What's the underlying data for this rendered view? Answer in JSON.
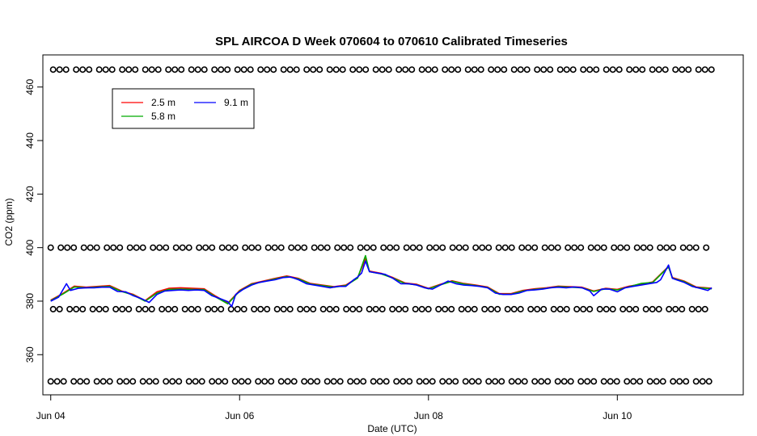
{
  "chart_data": {
    "type": "line",
    "title": "SPL AIRCOA D  Week 070604 to 070610  Calibrated Timeseries",
    "xlabel": "Date (UTC)",
    "ylabel": "CO2 (ppm)",
    "x_axis_kind": "date",
    "xlim": [
      "2007-06-03T22:00",
      "2007-06-11T08:00"
    ],
    "ylim": [
      345,
      472
    ],
    "x_ticks": [
      {
        "date": "2007-06-04T00:00",
        "label": "Jun 04"
      },
      {
        "date": "2007-06-06T00:00",
        "label": "Jun 06"
      },
      {
        "date": "2007-06-08T00:00",
        "label": "Jun 08"
      },
      {
        "date": "2007-06-10T00:00",
        "label": "Jun 10"
      }
    ],
    "y_ticks": [
      360,
      380,
      400,
      420,
      440,
      460
    ],
    "grid": false,
    "legend": {
      "placement": "top-left",
      "entries": [
        {
          "label": "2.5 m",
          "color": "#ff0000"
        },
        {
          "label": "5.8 m",
          "color": "#00aa00"
        },
        {
          "label": "9.1 m",
          "color": "#0000ff"
        }
      ]
    },
    "series": [
      {
        "name": "2.5 m",
        "color": "#ff0000",
        "points": [
          [
            "2007-06-04T00:00",
            380.4
          ],
          [
            "2007-06-04T03:00",
            382.8
          ],
          [
            "2007-06-04T06:00",
            385.6
          ],
          [
            "2007-06-04T09:00",
            385.2
          ],
          [
            "2007-06-04T12:00",
            385.5
          ],
          [
            "2007-06-04T15:00",
            385.8
          ],
          [
            "2007-06-04T18:00",
            383.8
          ],
          [
            "2007-06-04T21:00",
            382.5
          ],
          [
            "2007-06-05T00:00",
            380.2
          ],
          [
            "2007-06-05T03:00",
            383.5
          ],
          [
            "2007-06-05T06:00",
            384.8
          ],
          [
            "2007-06-05T09:00",
            385.0
          ],
          [
            "2007-06-05T12:00",
            384.8
          ],
          [
            "2007-06-05T15:00",
            384.6
          ],
          [
            "2007-06-05T18:00",
            381.8
          ],
          [
            "2007-06-05T21:00",
            379.2
          ],
          [
            "2007-06-06T00:00",
            384.0
          ],
          [
            "2007-06-06T03:00",
            386.5
          ],
          [
            "2007-06-06T06:00",
            387.5
          ],
          [
            "2007-06-06T09:00",
            388.5
          ],
          [
            "2007-06-06T12:00",
            389.4
          ],
          [
            "2007-06-06T15:00",
            388.5
          ],
          [
            "2007-06-06T18:00",
            386.6
          ],
          [
            "2007-06-06T21:00",
            386.0
          ],
          [
            "2007-06-07T00:00",
            385.4
          ],
          [
            "2007-06-07T03:00",
            386.0
          ],
          [
            "2007-06-07T06:00",
            388.8
          ],
          [
            "2007-06-07T08:00",
            395.8
          ],
          [
            "2007-06-07T09:00",
            391.2
          ],
          [
            "2007-06-07T12:00",
            390.4
          ],
          [
            "2007-06-07T15:00",
            388.8
          ],
          [
            "2007-06-07T18:00",
            386.8
          ],
          [
            "2007-06-07T21:00",
            386.3
          ],
          [
            "2007-06-08T00:00",
            384.8
          ],
          [
            "2007-06-08T03:00",
            386.3
          ],
          [
            "2007-06-08T06:00",
            387.6
          ],
          [
            "2007-06-08T09:00",
            386.6
          ],
          [
            "2007-06-08T12:00",
            386.0
          ],
          [
            "2007-06-08T15:00",
            385.3
          ],
          [
            "2007-06-08T18:00",
            382.8
          ],
          [
            "2007-06-08T21:00",
            382.8
          ],
          [
            "2007-06-09T00:00",
            384.0
          ],
          [
            "2007-06-09T03:00",
            384.6
          ],
          [
            "2007-06-09T06:00",
            385.0
          ],
          [
            "2007-06-09T09:00",
            385.6
          ],
          [
            "2007-06-09T12:00",
            385.4
          ],
          [
            "2007-06-09T15:00",
            385.2
          ],
          [
            "2007-06-09T18:00",
            383.8
          ],
          [
            "2007-06-09T21:00",
            384.8
          ],
          [
            "2007-06-10T00:00",
            384.4
          ],
          [
            "2007-06-10T03:00",
            385.6
          ],
          [
            "2007-06-10T06:00",
            386.3
          ],
          [
            "2007-06-10T09:00",
            387.2
          ],
          [
            "2007-06-10T13:00",
            393.0
          ],
          [
            "2007-06-10T14:00",
            388.8
          ],
          [
            "2007-06-10T17:00",
            387.5
          ],
          [
            "2007-06-10T20:00",
            385.3
          ],
          [
            "2007-06-11T00:00",
            384.8
          ]
        ]
      },
      {
        "name": "5.8 m",
        "color": "#00aa00",
        "points": [
          [
            "2007-06-04T00:00",
            380.2
          ],
          [
            "2007-06-04T03:00",
            382.6
          ],
          [
            "2007-06-04T06:00",
            385.3
          ],
          [
            "2007-06-04T09:00",
            385.0
          ],
          [
            "2007-06-04T12:00",
            385.3
          ],
          [
            "2007-06-04T15:00",
            385.5
          ],
          [
            "2007-06-04T18:00",
            383.6
          ],
          [
            "2007-06-04T21:00",
            382.3
          ],
          [
            "2007-06-05T00:00",
            380.0
          ],
          [
            "2007-06-05T03:00",
            383.0
          ],
          [
            "2007-06-05T06:00",
            384.4
          ],
          [
            "2007-06-05T09:00",
            384.5
          ],
          [
            "2007-06-05T12:00",
            384.4
          ],
          [
            "2007-06-05T15:00",
            384.3
          ],
          [
            "2007-06-05T18:00",
            381.5
          ],
          [
            "2007-06-05T21:00",
            379.0
          ],
          [
            "2007-06-06T00:00",
            383.8
          ],
          [
            "2007-06-06T03:00",
            386.3
          ],
          [
            "2007-06-06T06:00",
            387.3
          ],
          [
            "2007-06-06T09:00",
            388.3
          ],
          [
            "2007-06-06T12:00",
            389.2
          ],
          [
            "2007-06-06T15:00",
            388.3
          ],
          [
            "2007-06-06T18:00",
            386.4
          ],
          [
            "2007-06-06T21:00",
            385.8
          ],
          [
            "2007-06-07T00:00",
            385.2
          ],
          [
            "2007-06-07T03:00",
            385.8
          ],
          [
            "2007-06-07T06:00",
            388.6
          ],
          [
            "2007-06-07T08:00",
            397.0
          ],
          [
            "2007-06-07T09:00",
            391.0
          ],
          [
            "2007-06-07T12:00",
            390.2
          ],
          [
            "2007-06-07T15:00",
            388.6
          ],
          [
            "2007-06-07T18:00",
            386.6
          ],
          [
            "2007-06-07T21:00",
            386.1
          ],
          [
            "2007-06-08T00:00",
            384.6
          ],
          [
            "2007-06-08T03:00",
            386.1
          ],
          [
            "2007-06-08T06:00",
            387.4
          ],
          [
            "2007-06-08T09:00",
            386.4
          ],
          [
            "2007-06-08T12:00",
            385.8
          ],
          [
            "2007-06-08T15:00",
            385.1
          ],
          [
            "2007-06-08T18:00",
            382.6
          ],
          [
            "2007-06-08T21:00",
            382.6
          ],
          [
            "2007-06-09T00:00",
            383.8
          ],
          [
            "2007-06-09T03:00",
            384.4
          ],
          [
            "2007-06-09T06:00",
            384.8
          ],
          [
            "2007-06-09T09:00",
            385.4
          ],
          [
            "2007-06-09T12:00",
            385.2
          ],
          [
            "2007-06-09T15:00",
            385.0
          ],
          [
            "2007-06-09T18:00",
            383.6
          ],
          [
            "2007-06-09T21:00",
            384.6
          ],
          [
            "2007-06-10T00:00",
            384.2
          ],
          [
            "2007-06-10T03:00",
            385.4
          ],
          [
            "2007-06-10T06:00",
            386.6
          ],
          [
            "2007-06-10T09:00",
            387.0
          ],
          [
            "2007-06-10T13:00",
            392.8
          ],
          [
            "2007-06-10T14:00",
            388.6
          ],
          [
            "2007-06-10T17:00",
            387.3
          ],
          [
            "2007-06-10T20:00",
            385.1
          ],
          [
            "2007-06-11T00:00",
            384.6
          ]
        ]
      },
      {
        "name": "9.1 m",
        "color": "#0000ff",
        "points": [
          [
            "2007-06-04T00:00",
            380.0
          ],
          [
            "2007-06-04T02:00",
            381.5
          ],
          [
            "2007-06-04T04:00",
            386.5
          ],
          [
            "2007-06-04T05:00",
            384.0
          ],
          [
            "2007-06-04T07:00",
            384.8
          ],
          [
            "2007-06-04T09:00",
            385.0
          ],
          [
            "2007-06-04T11:00",
            385.0
          ],
          [
            "2007-06-04T13:00",
            385.2
          ],
          [
            "2007-06-04T15:00",
            385.2
          ],
          [
            "2007-06-04T17:00",
            383.6
          ],
          [
            "2007-06-04T19:00",
            383.5
          ],
          [
            "2007-06-04T21:00",
            382.0
          ],
          [
            "2007-06-04T23:00",
            381.0
          ],
          [
            "2007-06-05T01:00",
            379.5
          ],
          [
            "2007-06-05T03:00",
            382.5
          ],
          [
            "2007-06-05T05:00",
            383.8
          ],
          [
            "2007-06-05T07:00",
            384.0
          ],
          [
            "2007-06-05T09:00",
            384.2
          ],
          [
            "2007-06-05T11:00",
            384.0
          ],
          [
            "2007-06-05T13:00",
            384.2
          ],
          [
            "2007-06-05T15:00",
            384.0
          ],
          [
            "2007-06-05T17:00",
            382.0
          ],
          [
            "2007-06-05T19:00",
            381.0
          ],
          [
            "2007-06-05T21:00",
            379.8
          ],
          [
            "2007-06-05T22:00",
            378.0
          ],
          [
            "2007-06-05T23:00",
            382.5
          ],
          [
            "2007-06-06T01:00",
            384.5
          ],
          [
            "2007-06-06T03:00",
            386.0
          ],
          [
            "2007-06-06T05:00",
            387.0
          ],
          [
            "2007-06-06T07:00",
            387.5
          ],
          [
            "2007-06-06T09:00",
            388.0
          ],
          [
            "2007-06-06T11:00",
            388.8
          ],
          [
            "2007-06-06T13:00",
            389.0
          ],
          [
            "2007-06-06T15:00",
            388.0
          ],
          [
            "2007-06-06T17:00",
            386.5
          ],
          [
            "2007-06-06T19:00",
            386.0
          ],
          [
            "2007-06-06T21:00",
            385.5
          ],
          [
            "2007-06-06T23:00",
            385.0
          ],
          [
            "2007-06-07T01:00",
            385.5
          ],
          [
            "2007-06-07T03:00",
            385.5
          ],
          [
            "2007-06-07T05:00",
            388.0
          ],
          [
            "2007-06-07T06:00",
            389.0
          ],
          [
            "2007-06-07T07:00",
            390.5
          ],
          [
            "2007-06-07T08:00",
            395.0
          ],
          [
            "2007-06-07T09:00",
            391.0
          ],
          [
            "2007-06-07T11:00",
            390.5
          ],
          [
            "2007-06-07T13:00",
            390.0
          ],
          [
            "2007-06-07T15:00",
            388.5
          ],
          [
            "2007-06-07T17:00",
            386.5
          ],
          [
            "2007-06-07T19:00",
            386.5
          ],
          [
            "2007-06-07T21:00",
            386.0
          ],
          [
            "2007-06-07T23:00",
            385.0
          ],
          [
            "2007-06-08T01:00",
            384.5
          ],
          [
            "2007-06-08T03:00",
            386.0
          ],
          [
            "2007-06-08T05:00",
            387.5
          ],
          [
            "2007-06-08T07:00",
            386.5
          ],
          [
            "2007-06-08T09:00",
            386.0
          ],
          [
            "2007-06-08T11:00",
            385.8
          ],
          [
            "2007-06-08T13:00",
            385.5
          ],
          [
            "2007-06-08T15:00",
            385.0
          ],
          [
            "2007-06-08T17:00",
            383.0
          ],
          [
            "2007-06-08T19:00",
            382.5
          ],
          [
            "2007-06-08T21:00",
            382.5
          ],
          [
            "2007-06-08T23:00",
            383.0
          ],
          [
            "2007-06-09T01:00",
            384.0
          ],
          [
            "2007-06-09T03:00",
            384.2
          ],
          [
            "2007-06-09T05:00",
            384.5
          ],
          [
            "2007-06-09T07:00",
            385.0
          ],
          [
            "2007-06-09T09:00",
            385.2
          ],
          [
            "2007-06-09T11:00",
            385.0
          ],
          [
            "2007-06-09T13:00",
            385.3
          ],
          [
            "2007-06-09T15:00",
            385.0
          ],
          [
            "2007-06-09T17:00",
            383.8
          ],
          [
            "2007-06-09T18:00",
            382.0
          ],
          [
            "2007-06-09T20:00",
            384.5
          ],
          [
            "2007-06-09T22:00",
            384.5
          ],
          [
            "2007-06-10T00:00",
            383.5
          ],
          [
            "2007-06-10T02:00",
            385.0
          ],
          [
            "2007-06-10T04:00",
            385.5
          ],
          [
            "2007-06-10T06:00",
            386.0
          ],
          [
            "2007-06-10T08:00",
            386.5
          ],
          [
            "2007-06-10T10:00",
            387.0
          ],
          [
            "2007-06-10T11:00",
            388.0
          ],
          [
            "2007-06-10T13:00",
            393.5
          ],
          [
            "2007-06-10T14:00",
            388.5
          ],
          [
            "2007-06-10T15:00",
            388.0
          ],
          [
            "2007-06-10T17:00",
            387.0
          ],
          [
            "2007-06-10T19:00",
            385.5
          ],
          [
            "2007-06-10T21:00",
            384.8
          ],
          [
            "2007-06-10T23:00",
            384.0
          ],
          [
            "2007-06-11T00:00",
            385.0
          ]
        ]
      }
    ],
    "circle_markers": {
      "y_levels": [
        350,
        377,
        400,
        466.5
      ],
      "x_start": "2007-06-04T00:00",
      "x_end": "2007-06-11T00:00"
    }
  }
}
